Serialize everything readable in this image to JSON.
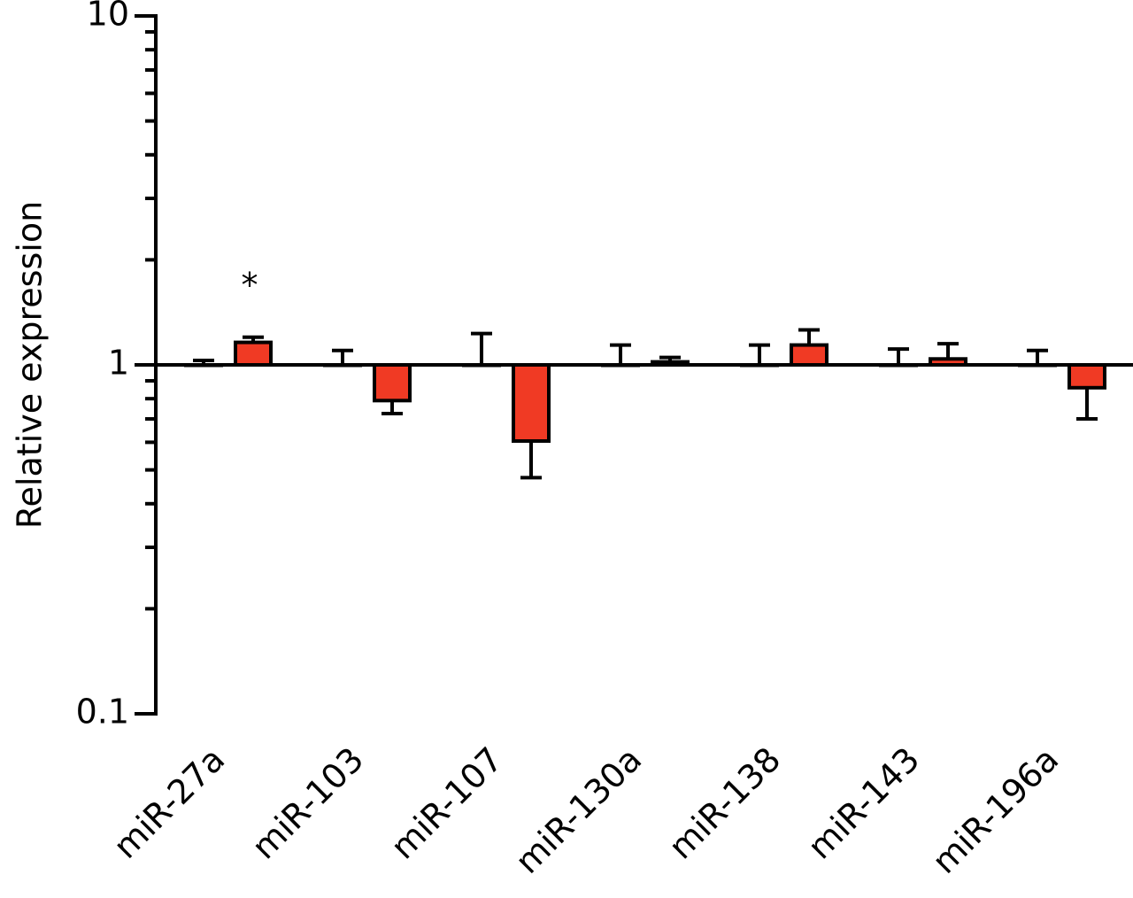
{
  "chart_data": {
    "type": "bar",
    "y_label": "Relative expression",
    "categories": [
      "miR-27a",
      "miR-103",
      "miR-107",
      "miR-130a",
      "miR-138",
      "miR-143",
      "miR-196a"
    ],
    "series": [
      {
        "color": "#ffffff",
        "values": [
          1,
          1,
          1,
          1,
          1,
          1,
          1
        ],
        "errors": [
          0.03,
          0.1,
          0.23,
          0.14,
          0.14,
          0.11,
          0.1
        ]
      },
      {
        "color": "#f03a24",
        "values": [
          1.16,
          0.79,
          0.605,
          1.02,
          1.14,
          1.04,
          0.86
        ],
        "errors": [
          0.04,
          0.065,
          0.13,
          0.03,
          0.12,
          0.11,
          0.16
        ]
      }
    ],
    "baseline": 1,
    "annotation": "*",
    "log_scale": true,
    "ylim": [
      0.1,
      10
    ],
    "yticks": [
      0.1,
      1,
      10
    ],
    "yminor_ticks": [
      0.2,
      0.3,
      0.4,
      0.5,
      0.6,
      0.7,
      0.8,
      0.9,
      2,
      3,
      4,
      5,
      6,
      7,
      8,
      9
    ]
  }
}
